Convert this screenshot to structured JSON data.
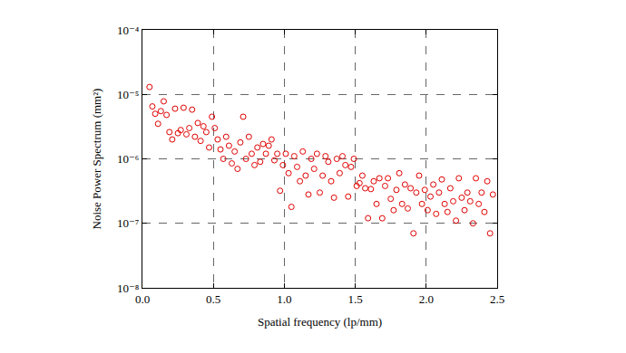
{
  "chart_data": {
    "type": "scatter",
    "x_label": "Spatial frequency (lp/mm)",
    "y_label": "Noise Power Spectrum (mm²)",
    "log": "y",
    "grid": true,
    "marker": "circle-open",
    "color": "#e00000",
    "xlim": [
      0,
      2.5
    ],
    "xticks": [
      {
        "value": 0,
        "label": "0.0"
      },
      0.5,
      {
        "value": 1,
        "label": "1.0"
      },
      1.5,
      {
        "value": 2,
        "label": "2.0"
      },
      2.5
    ],
    "ylim": [
      1e-08,
      0.0001
    ],
    "yticks": [
      {
        "value": 1e-08,
        "label": "10⁻⁸"
      },
      {
        "value": 1e-07,
        "label": "10⁻⁷"
      },
      {
        "value": 1e-06,
        "label": "10⁻⁶"
      },
      {
        "value": 1e-05,
        "label": "10⁻⁵"
      },
      {
        "value": 0.0001,
        "label": "10⁻⁴"
      }
    ],
    "x": [
      0.05,
      0.07,
      0.09,
      0.11,
      0.13,
      0.15,
      0.17,
      0.19,
      0.21,
      0.23,
      0.25,
      0.27,
      0.29,
      0.31,
      0.33,
      0.35,
      0.37,
      0.39,
      0.41,
      0.43,
      0.45,
      0.47,
      0.49,
      0.51,
      0.53,
      0.55,
      0.57,
      0.59,
      0.61,
      0.63,
      0.65,
      0.67,
      0.69,
      0.71,
      0.73,
      0.75,
      0.77,
      0.79,
      0.81,
      0.83,
      0.85,
      0.87,
      0.89,
      0.91,
      0.93,
      0.95,
      0.97,
      0.99,
      1.01,
      1.03,
      1.05,
      1.07,
      1.09,
      1.11,
      1.13,
      1.15,
      1.17,
      1.19,
      1.21,
      1.23,
      1.25,
      1.27,
      1.29,
      1.31,
      1.33,
      1.35,
      1.37,
      1.39,
      1.41,
      1.43,
      1.45,
      1.47,
      1.49,
      1.51,
      1.53,
      1.55,
      1.57,
      1.59,
      1.61,
      1.63,
      1.65,
      1.67,
      1.69,
      1.71,
      1.73,
      1.75,
      1.77,
      1.79,
      1.81,
      1.83,
      1.85,
      1.87,
      1.89,
      1.91,
      1.93,
      1.95,
      1.97,
      1.99,
      2.01,
      2.03,
      2.05,
      2.07,
      2.09,
      2.11,
      2.13,
      2.15,
      2.17,
      2.19,
      2.21,
      2.23,
      2.25,
      2.27,
      2.29,
      2.31,
      2.33,
      2.35,
      2.37,
      2.39,
      2.41,
      2.43,
      2.45,
      2.47
    ],
    "values": [
      1.3e-05,
      6.5e-06,
      5e-06,
      3.5e-06,
      5.5e-06,
      7.8e-06,
      4.8e-06,
      2.6e-06,
      2e-06,
      6e-06,
      2.5e-06,
      2.8e-06,
      6.2e-06,
      2.4e-06,
      3e-06,
      5.8e-06,
      2.2e-06,
      3.6e-06,
      1.9e-06,
      3.2e-06,
      2.6e-06,
      1.5e-06,
      4.5e-06,
      3e-06,
      2e-06,
      1.4e-06,
      1e-06,
      2.2e-06,
      1.6e-06,
      8.5e-07,
      1.3e-06,
      7e-07,
      1.8e-06,
      4.5e-06,
      1e-06,
      2.2e-06,
      1.2e-06,
      8e-07,
      1.5e-06,
      9e-07,
      1.7e-06,
      1.2e-06,
      1.6e-06,
      2e-06,
      9.5e-07,
      1.2e-06,
      3.2e-07,
      8e-07,
      1.2e-06,
      6e-07,
      1.8e-07,
      1.1e-06,
      7.5e-07,
      4.5e-07,
      1.3e-06,
      5.5e-07,
      2.8e-07,
      1e-06,
      7e-07,
      1.2e-06,
      3e-07,
      5.5e-07,
      1.1e-06,
      9e-07,
      4.5e-07,
      2.5e-07,
      1e-06,
      6e-07,
      1.1e-06,
      8e-07,
      2.6e-07,
      7.5e-07,
      1e-06,
      3.8e-07,
      4.2e-07,
      5.5e-07,
      3.5e-07,
      1.2e-07,
      3.4e-07,
      4.5e-07,
      2e-07,
      5e-07,
      1.2e-07,
      3.8e-07,
      5e-07,
      2.4e-07,
      1.6e-07,
      3.3e-07,
      6e-07,
      2e-07,
      4e-07,
      1.7e-07,
      3.5e-07,
      7e-08,
      3e-07,
      5.5e-07,
      2e-07,
      3.3e-07,
      1.6e-07,
      2.6e-07,
      4e-07,
      1.4e-07,
      3e-07,
      4.8e-07,
      2e-07,
      1.5e-07,
      3.5e-07,
      2.2e-07,
      1.1e-07,
      5e-07,
      2.5e-07,
      1.6e-07,
      3e-07,
      2.2e-07,
      1e-07,
      5e-07,
      2e-07,
      3e-07,
      1.5e-07,
      4.5e-07,
      7e-08,
      2.8e-07
    ]
  }
}
